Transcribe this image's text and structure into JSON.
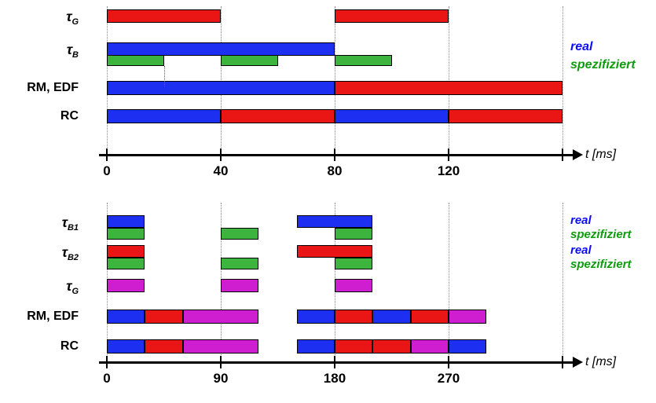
{
  "colors": {
    "blue": "#1d2ff0",
    "red": "#ea1515",
    "green": "#3db43d",
    "magenta": "#cf1ecf",
    "axis": "#000000",
    "grid": "#8a8a8a",
    "legend_real": "#0b0bff",
    "legend_spec": "#0f9b0f"
  },
  "chart_data": [
    {
      "type": "gantt",
      "name": "scheduling-overrun-single-task",
      "unit": "ms",
      "axis": {
        "label": "t [ms]",
        "ticks": [
          0,
          40,
          80,
          120,
          160
        ],
        "tick_labels": [
          "0",
          "40",
          "80",
          "120",
          ""
        ],
        "min": 0,
        "max": 160
      },
      "rows": [
        {
          "name": "tau_G",
          "label_main": "τ",
          "label_sub": "G",
          "bars": [
            {
              "start": 0,
              "end": 40,
              "color": "red"
            },
            {
              "start": 80,
              "end": 120,
              "color": "red"
            }
          ]
        },
        {
          "name": "tau_B",
          "label_main": "τ",
          "label_sub": "B",
          "bars": [
            {
              "start": 0,
              "end": 80,
              "color": "blue",
              "lane": "real"
            },
            {
              "start": 0,
              "end": 20,
              "color": "green",
              "lane": "spec"
            },
            {
              "start": 40,
              "end": 60,
              "color": "green",
              "lane": "spec"
            },
            {
              "start": 80,
              "end": 100,
              "color": "green",
              "lane": "spec"
            }
          ]
        },
        {
          "name": "rm_edf",
          "label_main": "RM, EDF",
          "label_sub": "",
          "bars": [
            {
              "start": 0,
              "end": 80,
              "color": "blue"
            },
            {
              "start": 80,
              "end": 160,
              "color": "red"
            }
          ]
        },
        {
          "name": "rc",
          "label_main": "RC",
          "label_sub": "",
          "bars": [
            {
              "start": 0,
              "end": 40,
              "color": "blue"
            },
            {
              "start": 40,
              "end": 80,
              "color": "red"
            },
            {
              "start": 80,
              "end": 120,
              "color": "blue"
            },
            {
              "start": 120,
              "end": 160,
              "color": "red"
            }
          ]
        }
      ],
      "legend": [
        {
          "label": "real",
          "color_key": "legend_real"
        },
        {
          "label": "spezifiziert",
          "color_key": "legend_spec"
        }
      ],
      "markers": [
        {
          "t": 20
        }
      ]
    },
    {
      "type": "gantt",
      "name": "scheduling-overrun-two-tasks",
      "unit": "ms",
      "axis": {
        "label": "t [ms]",
        "ticks": [
          0,
          90,
          180,
          270,
          360
        ],
        "tick_labels": [
          "0",
          "90",
          "180",
          "270",
          ""
        ],
        "min": 0,
        "max": 360
      },
      "rows": [
        {
          "name": "tau_B1",
          "label_main": "τ",
          "label_sub": "B1",
          "bars": [
            {
              "start": 0,
              "end": 30,
              "color": "blue",
              "lane": "real"
            },
            {
              "start": 150,
              "end": 210,
              "color": "blue",
              "lane": "real"
            },
            {
              "start": 0,
              "end": 30,
              "color": "green",
              "lane": "spec"
            },
            {
              "start": 90,
              "end": 120,
              "color": "green",
              "lane": "spec"
            },
            {
              "start": 180,
              "end": 210,
              "color": "green",
              "lane": "spec"
            }
          ]
        },
        {
          "name": "tau_B2",
          "label_main": "τ",
          "label_sub": "B2",
          "bars": [
            {
              "start": 0,
              "end": 30,
              "color": "red",
              "lane": "real"
            },
            {
              "start": 150,
              "end": 210,
              "color": "red",
              "lane": "real"
            },
            {
              "start": 0,
              "end": 30,
              "color": "green",
              "lane": "spec"
            },
            {
              "start": 90,
              "end": 120,
              "color": "green",
              "lane": "spec"
            },
            {
              "start": 180,
              "end": 210,
              "color": "green",
              "lane": "spec"
            }
          ]
        },
        {
          "name": "tau_G",
          "label_main": "τ",
          "label_sub": "G",
          "bars": [
            {
              "start": 0,
              "end": 30,
              "color": "magenta"
            },
            {
              "start": 90,
              "end": 120,
              "color": "magenta"
            },
            {
              "start": 180,
              "end": 210,
              "color": "magenta"
            }
          ]
        },
        {
          "name": "rm_edf",
          "label_main": "RM, EDF",
          "label_sub": "",
          "bars": [
            {
              "start": 0,
              "end": 30,
              "color": "blue"
            },
            {
              "start": 30,
              "end": 60,
              "color": "red"
            },
            {
              "start": 60,
              "end": 120,
              "color": "magenta"
            },
            {
              "start": 150,
              "end": 180,
              "color": "blue"
            },
            {
              "start": 180,
              "end": 210,
              "color": "red"
            },
            {
              "start": 210,
              "end": 240,
              "color": "blue"
            },
            {
              "start": 240,
              "end": 270,
              "color": "red"
            },
            {
              "start": 270,
              "end": 300,
              "color": "magenta"
            }
          ]
        },
        {
          "name": "rc",
          "label_main": "RC",
          "label_sub": "",
          "bars": [
            {
              "start": 0,
              "end": 30,
              "color": "blue"
            },
            {
              "start": 30,
              "end": 60,
              "color": "red"
            },
            {
              "start": 60,
              "end": 120,
              "color": "magenta"
            },
            {
              "start": 150,
              "end": 180,
              "color": "blue"
            },
            {
              "start": 180,
              "end": 210,
              "color": "red"
            },
            {
              "start": 210,
              "end": 240,
              "color": "red"
            },
            {
              "start": 240,
              "end": 270,
              "color": "magenta"
            },
            {
              "start": 270,
              "end": 300,
              "color": "blue"
            }
          ]
        }
      ],
      "legend": [
        {
          "label": "real",
          "color_key": "legend_real"
        },
        {
          "label": "spezifiziert",
          "color_key": "legend_spec"
        },
        {
          "label": "real",
          "color_key": "legend_real"
        },
        {
          "label": "spezifiziert",
          "color_key": "legend_spec"
        }
      ]
    }
  ]
}
